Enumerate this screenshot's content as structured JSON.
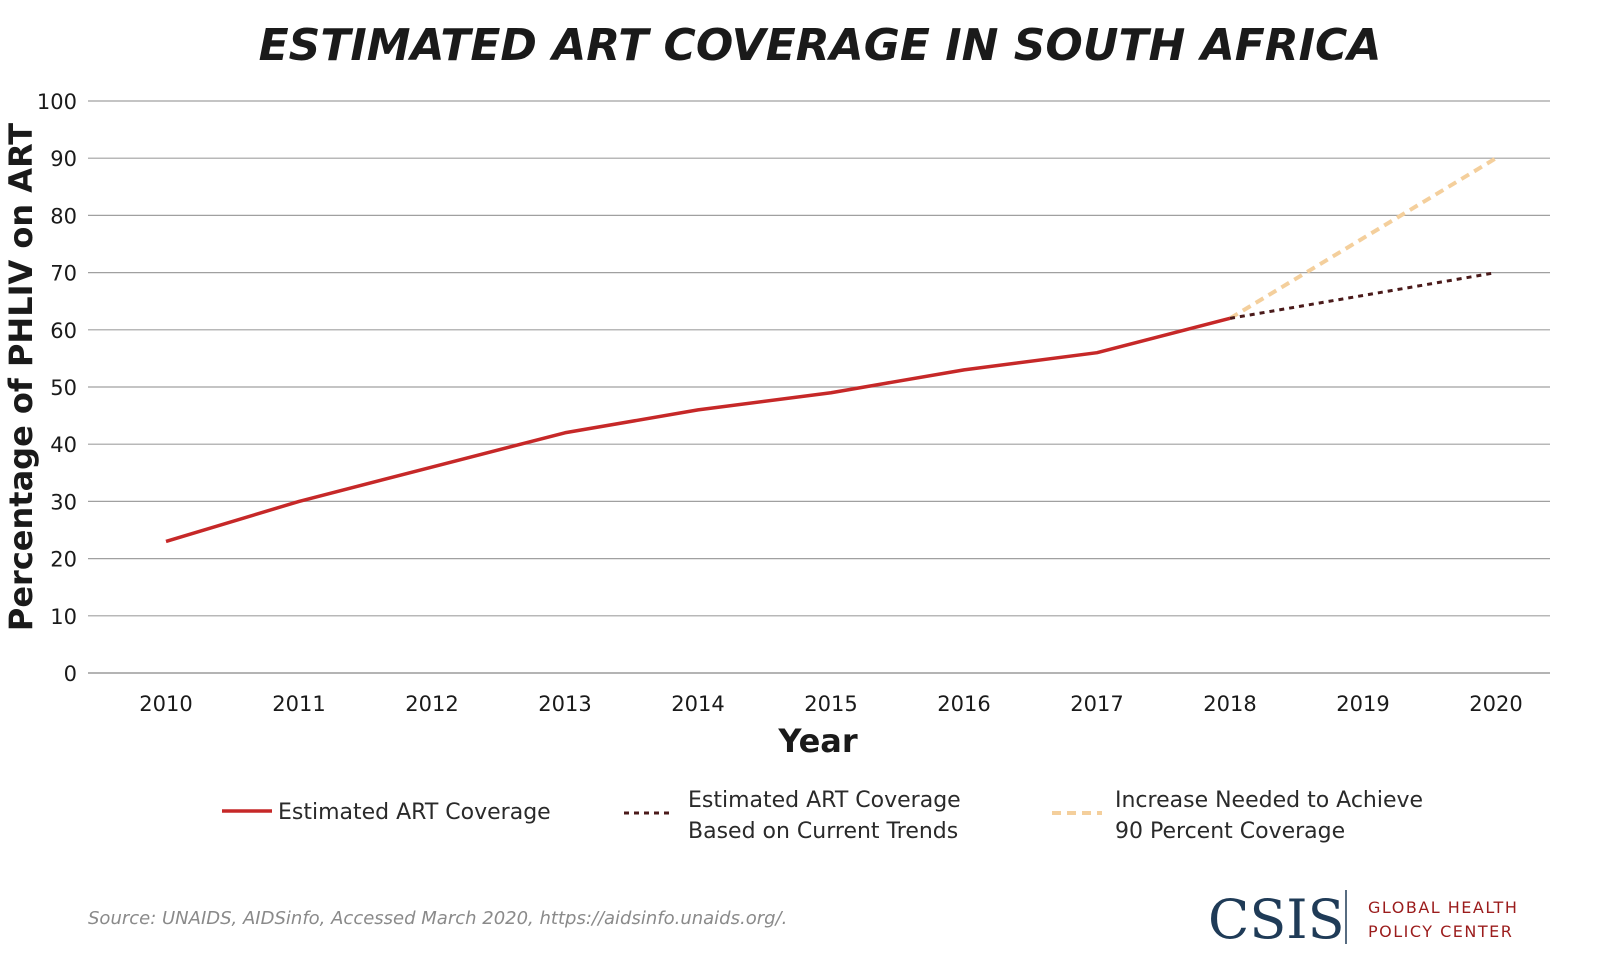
{
  "chart_data": {
    "type": "line",
    "title": "ESTIMATED ART COVERAGE IN SOUTH AFRICA",
    "xlabel": "Year",
    "ylabel": "Percentage of PHLIV on ART",
    "x": [
      "2010",
      "2011",
      "2012",
      "2013",
      "2014",
      "2015",
      "2016",
      "2017",
      "2018",
      "2019",
      "2020"
    ],
    "yticks": [
      "0",
      "10",
      "20",
      "30",
      "40",
      "50",
      "60",
      "70",
      "80",
      "90",
      "100"
    ],
    "ylim": [
      0,
      100
    ],
    "grid": true,
    "series": [
      {
        "name": "Estimated ART Coverage",
        "style": "solid",
        "color": "#c62828",
        "x": [
          "2010",
          "2011",
          "2012",
          "2013",
          "2014",
          "2015",
          "2016",
          "2017",
          "2018"
        ],
        "values": [
          23,
          30,
          36,
          42,
          46,
          49,
          53,
          56,
          62
        ]
      },
      {
        "name": "Estimated ART Coverage Based on Current Trends",
        "legend_lines": [
          "Estimated ART Coverage",
          "Based on Current Trends"
        ],
        "style": "dotted",
        "color": "#4a1a1a",
        "x": [
          "2018",
          "2020"
        ],
        "values": [
          62,
          70
        ]
      },
      {
        "name": "Increase Needed to Achieve 90 Percent Coverage",
        "legend_lines": [
          "Increase Needed to Achieve",
          "90 Percent Coverage"
        ],
        "style": "dashed",
        "color": "#f4cf9c",
        "x": [
          "2018",
          "2020"
        ],
        "values": [
          62,
          90
        ]
      }
    ],
    "legend_position": "bottom"
  },
  "source": "Source: UNAIDS, AIDSinfo, Accessed March 2020, https://aidsinfo.unaids.org/.",
  "logo": {
    "name": "CSIS",
    "center_lines": [
      "GLOBAL HEALTH",
      "POLICY CENTER"
    ]
  },
  "colors": {
    "grid": "#a0a0a0",
    "axis": "#888888",
    "logo_navy": "#1f3b57",
    "logo_red": "#9b1c1c"
  }
}
